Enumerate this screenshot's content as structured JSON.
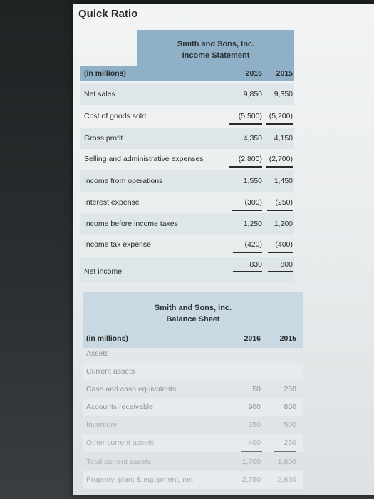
{
  "page_title": "Quick Ratio",
  "income_statement": {
    "company": "Smith and Sons, Inc.",
    "statement": "Income Statement",
    "unit_label": "(in millions)",
    "col1": "2016",
    "col2": "2015",
    "rows": [
      {
        "label": "Net sales",
        "v2016": "9,850",
        "v2015": "9,350"
      },
      {
        "label": "Cost of goods sold",
        "v2016": "(5,500)",
        "v2015": "(5,200)"
      },
      {
        "label": "Gross profit",
        "v2016": "4,350",
        "v2015": "4,150"
      },
      {
        "label": "Selling and administrative expenses",
        "v2016": "(2,800)",
        "v2015": "(2,700)"
      },
      {
        "label": "Income from operations",
        "v2016": "1,550",
        "v2015": "1,450"
      },
      {
        "label": "Interest expense",
        "v2016": "(300)",
        "v2015": "(250)"
      },
      {
        "label": "Income before income taxes",
        "v2016": "1,250",
        "v2015": "1,200"
      },
      {
        "label": "Income tax expense",
        "v2016": "(420)",
        "v2015": "(400)"
      },
      {
        "label": "Net income",
        "v2016": "830",
        "v2015": "800"
      }
    ]
  },
  "balance_sheet": {
    "company": "Smith and Sons, Inc.",
    "statement": "Balance Sheet",
    "unit_label": "(in millions)",
    "col1": "2016",
    "col2": "2015",
    "rows": [
      {
        "label": "Assets",
        "v2016": "",
        "v2015": ""
      },
      {
        "label": "Current assets",
        "v2016": "",
        "v2015": ""
      },
      {
        "label": "Cash and cash equivalents",
        "v2016": "50",
        "v2015": "250"
      },
      {
        "label": "Accounts receivable",
        "v2016": "900",
        "v2015": "800"
      },
      {
        "label": "Inventory",
        "v2016": "350",
        "v2015": "500"
      },
      {
        "label": "Other current assets",
        "v2016": "400",
        "v2015": "250"
      },
      {
        "label": "Total current assets",
        "v2016": "1,700",
        "v2015": "1,800"
      },
      {
        "label": "Property, plant & equipment, net",
        "v2016": "2,750",
        "v2015": "2,650"
      }
    ]
  }
}
